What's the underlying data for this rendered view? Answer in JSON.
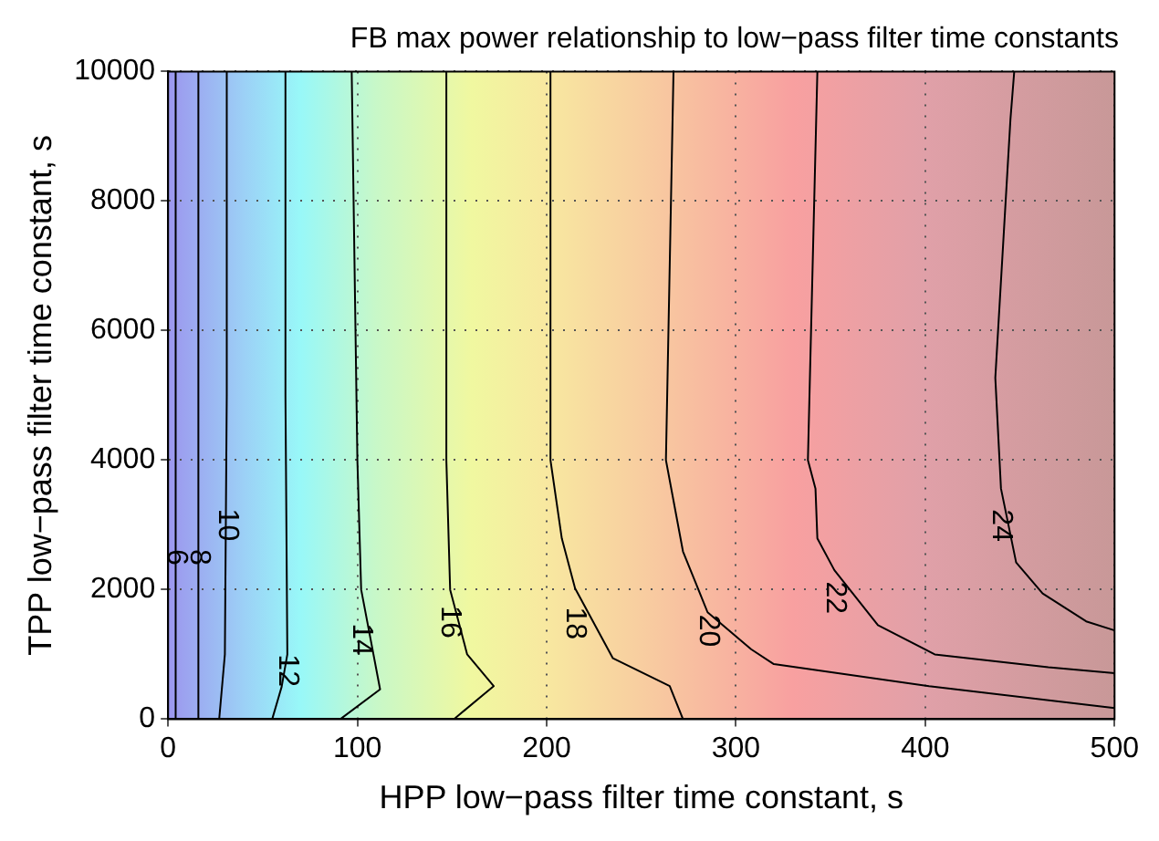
{
  "chart_data": {
    "type": "line",
    "title": "FB max power relationship to low−pass filter time constants",
    "xlabel": "HPP low−pass filter time constant, s",
    "ylabel": "TPP low−pass filter time constant, s",
    "xlim": [
      0,
      500
    ],
    "ylim": [
      0,
      10000
    ],
    "xticks": [
      0,
      100,
      200,
      300,
      400,
      500
    ],
    "yticks": [
      0,
      2000,
      4000,
      6000,
      8000,
      10000
    ],
    "grid": true,
    "legend": false,
    "marker": "none",
    "line_style": "solid",
    "series": [
      {
        "name": "6",
        "color": "#000000",
        "x": [
          4,
          4,
          4
        ],
        "values": [
          10000,
          5000,
          0
        ]
      },
      {
        "name": "8",
        "color": "#000000",
        "x": [
          16,
          16,
          16
        ],
        "values": [
          10000,
          5000,
          0
        ]
      },
      {
        "name": "10",
        "color": "#000000",
        "x": [
          31,
          31,
          30,
          27
        ],
        "values": [
          10000,
          5000,
          1000,
          0
        ]
      },
      {
        "name": "12",
        "color": "#000000",
        "x": [
          62,
          62,
          63,
          60,
          55
        ],
        "values": [
          10000,
          5000,
          1000,
          500,
          0
        ]
      },
      {
        "name": "14",
        "color": "#000000",
        "x": [
          97,
          100,
          102,
          112,
          91
        ],
        "values": [
          10000,
          4000,
          2000,
          460,
          0
        ]
      },
      {
        "name": "16",
        "color": "#000000",
        "x": [
          147,
          147,
          149,
          158,
          172,
          151
        ],
        "values": [
          10000,
          4000,
          2000,
          1000,
          510,
          0
        ]
      },
      {
        "name": "18",
        "color": "#000000",
        "x": [
          202,
          202,
          208,
          215,
          235,
          265,
          272
        ],
        "values": [
          10000,
          4000,
          2790,
          2020,
          940,
          510,
          0
        ]
      },
      {
        "name": "20",
        "color": "#000000",
        "x": [
          267,
          263,
          272,
          285,
          308,
          320,
          402,
          500
        ],
        "values": [
          10000,
          4000,
          2590,
          1650,
          1080,
          850,
          510,
          170
        ]
      },
      {
        "name": "22",
        "color": "#000000",
        "x": [
          343,
          338,
          342,
          343,
          352,
          375,
          405,
          465,
          500
        ],
        "values": [
          10000,
          4000,
          3560,
          2790,
          2300,
          1450,
          1000,
          800,
          710
        ]
      },
      {
        "name": "24",
        "color": "#000000",
        "x": [
          447,
          445,
          437,
          440,
          448,
          462,
          485,
          500
        ],
        "values": [
          10000,
          9260,
          5270,
          3560,
          2420,
          1940,
          1510,
          1370
        ]
      }
    ]
  }
}
